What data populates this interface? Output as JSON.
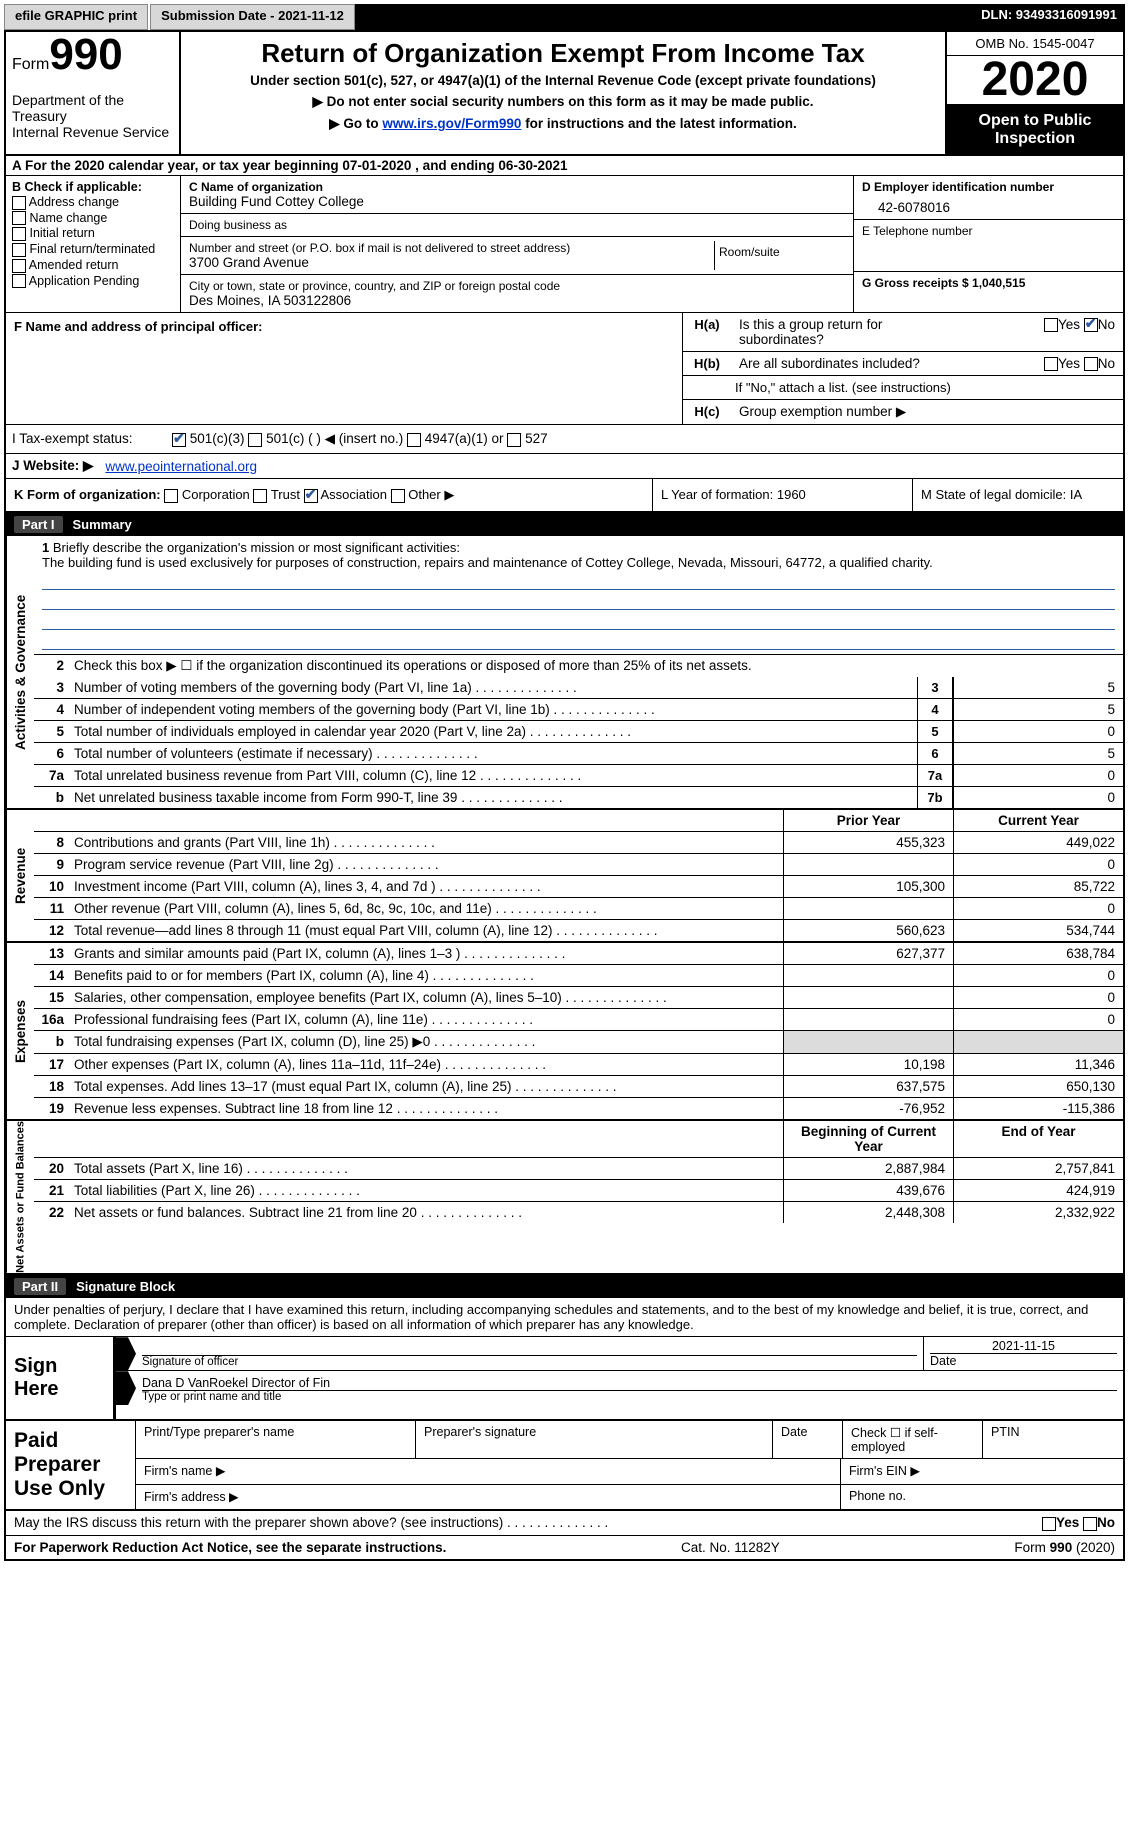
{
  "topbar": {
    "efile": "efile GRAPHIC print",
    "submission_label": "Submission Date - 2021-11-12",
    "dln_label": "DLN: 93493316091991"
  },
  "header": {
    "form_word": "Form",
    "form_num": "990",
    "dept": "Department of the Treasury\nInternal Revenue Service",
    "title": "Return of Organization Exempt From Income Tax",
    "sub1": "Under section 501(c), 527, or 4947(a)(1) of the Internal Revenue Code (except private foundations)",
    "sub2": "▶ Do not enter social security numbers on this form as it may be made public.",
    "sub3_a": "▶ Go to ",
    "sub3_link": "www.irs.gov/Form990",
    "sub3_b": " for instructions and the latest information.",
    "omb": "OMB No. 1545-0047",
    "year": "2020",
    "open": "Open to Public Inspection"
  },
  "row_a": "A   For the 2020 calendar year, or tax year beginning 07-01-2020    , and ending 06-30-2021",
  "section_b": {
    "header": "B Check if applicable:",
    "opts": [
      "Address change",
      "Name change",
      "Initial return",
      "Final return/terminated",
      "Amended return",
      "Application Pending"
    ]
  },
  "section_c": {
    "name_lbl": "C Name of organization",
    "name_val": "Building Fund Cottey College",
    "dba_lbl": "Doing business as",
    "dba_val": "",
    "street_lbl": "Number and street (or P.O. box if mail is not delivered to street address)",
    "street_val": "3700 Grand Avenue",
    "room_lbl": "Room/suite",
    "city_lbl": "City or town, state or province, country, and ZIP or foreign postal code",
    "city_val": "Des Moines, IA  503122806"
  },
  "right_col": {
    "d_lbl": "D Employer identification number",
    "d_val": "42-6078016",
    "e_lbl": "E Telephone number",
    "e_val": "",
    "g_lbl": "G Gross receipts $ 1,040,515"
  },
  "section_f": {
    "lbl": "F Name and address of principal officer:",
    "val": ""
  },
  "section_h": {
    "a_lbl": "H(a)",
    "a_txt": "Is this a group return for subordinates?",
    "b_lbl": "H(b)",
    "b_txt": "Are all subordinates included?",
    "b_note": "If \"No,\" attach a list. (see instructions)",
    "c_lbl": "H(c)",
    "c_txt": "Group exemption number ▶",
    "yes": "Yes",
    "no": "No"
  },
  "row_i": {
    "lbl": "I    Tax-exempt status:",
    "opts": [
      "501(c)(3)",
      "501(c) (  ) ◀ (insert no.)",
      "4947(a)(1) or",
      "527"
    ]
  },
  "row_j": {
    "lbl": "J    Website: ▶",
    "val": "www.peointernational.org"
  },
  "row_k": {
    "lbl": "K Form of organization:",
    "opts": [
      "Corporation",
      "Trust",
      "Association",
      "Other ▶"
    ]
  },
  "row_l": {
    "yr": "L Year of formation: 1960",
    "st": "M State of legal domicile: IA"
  },
  "part1": {
    "hdr_num": "Part I",
    "hdr_txt": "Summary",
    "q1_lbl": "1",
    "q1_txt": "Briefly describe the organization's mission or most significant activities:",
    "q1_val": "The building fund is used exclusively for purposes of construction, repairs and maintenance of Cottey College, Nevada, Missouri, 64772, a qualified charity.",
    "q2_lbl": "2",
    "q2_txt": "Check this box ▶ ☐  if the organization discontinued its operations or disposed of more than 25% of its net assets.",
    "gov_rows": [
      {
        "n": "3",
        "t": "Number of voting members of the governing body (Part VI, line 1a)",
        "b": "3",
        "v": "5"
      },
      {
        "n": "4",
        "t": "Number of independent voting members of the governing body (Part VI, line 1b)",
        "b": "4",
        "v": "5"
      },
      {
        "n": "5",
        "t": "Total number of individuals employed in calendar year 2020 (Part V, line 2a)",
        "b": "5",
        "v": "0"
      },
      {
        "n": "6",
        "t": "Total number of volunteers (estimate if necessary)",
        "b": "6",
        "v": "5"
      },
      {
        "n": "7a",
        "t": "Total unrelated business revenue from Part VIII, column (C), line 12",
        "b": "7a",
        "v": "0"
      },
      {
        "n": "b",
        "t": "Net unrelated business taxable income from Form 990-T, line 39",
        "b": "7b",
        "v": "0"
      }
    ],
    "col_prior": "Prior Year",
    "col_curr": "Current Year",
    "rev_rows": [
      {
        "n": "8",
        "t": "Contributions and grants (Part VIII, line 1h)",
        "p": "455,323",
        "c": "449,022"
      },
      {
        "n": "9",
        "t": "Program service revenue (Part VIII, line 2g)",
        "p": "",
        "c": "0"
      },
      {
        "n": "10",
        "t": "Investment income (Part VIII, column (A), lines 3, 4, and 7d )",
        "p": "105,300",
        "c": "85,722"
      },
      {
        "n": "11",
        "t": "Other revenue (Part VIII, column (A), lines 5, 6d, 8c, 9c, 10c, and 11e)",
        "p": "",
        "c": "0"
      },
      {
        "n": "12",
        "t": "Total revenue—add lines 8 through 11 (must equal Part VIII, column (A), line 12)",
        "p": "560,623",
        "c": "534,744"
      }
    ],
    "exp_rows": [
      {
        "n": "13",
        "t": "Grants and similar amounts paid (Part IX, column (A), lines 1–3 )",
        "p": "627,377",
        "c": "638,784"
      },
      {
        "n": "14",
        "t": "Benefits paid to or for members (Part IX, column (A), line 4)",
        "p": "",
        "c": "0"
      },
      {
        "n": "15",
        "t": "Salaries, other compensation, employee benefits (Part IX, column (A), lines 5–10)",
        "p": "",
        "c": "0"
      },
      {
        "n": "16a",
        "t": "Professional fundraising fees (Part IX, column (A), line 11e)",
        "p": "",
        "c": "0"
      },
      {
        "n": "b",
        "t": "Total fundraising expenses (Part IX, column (D), line 25) ▶0",
        "p": "shade",
        "c": "shade"
      },
      {
        "n": "17",
        "t": "Other expenses (Part IX, column (A), lines 11a–11d, 11f–24e)",
        "p": "10,198",
        "c": "11,346"
      },
      {
        "n": "18",
        "t": "Total expenses. Add lines 13–17 (must equal Part IX, column (A), line 25)",
        "p": "637,575",
        "c": "650,130"
      },
      {
        "n": "19",
        "t": "Revenue less expenses. Subtract line 18 from line 12",
        "p": "-76,952",
        "c": "-115,386"
      }
    ],
    "col_begin": "Beginning of Current Year",
    "col_end": "End of Year",
    "na_rows": [
      {
        "n": "20",
        "t": "Total assets (Part X, line 16)",
        "p": "2,887,984",
        "c": "2,757,841"
      },
      {
        "n": "21",
        "t": "Total liabilities (Part X, line 26)",
        "p": "439,676",
        "c": "424,919"
      },
      {
        "n": "22",
        "t": "Net assets or fund balances. Subtract line 21 from line 20",
        "p": "2,448,308",
        "c": "2,332,922"
      }
    ],
    "vert_gov": "Activities & Governance",
    "vert_rev": "Revenue",
    "vert_exp": "Expenses",
    "vert_na": "Net Assets or Fund Balances"
  },
  "part2": {
    "hdr_num": "Part II",
    "hdr_txt": "Signature Block",
    "note": "Under penalties of perjury, I declare that I have examined this return, including accompanying schedules and statements, and to the best of my knowledge and belief, it is true, correct, and complete. Declaration of preparer (other than officer) is based on all information of which preparer has any knowledge.",
    "sign_here": "Sign Here",
    "sig_officer": "Signature of officer",
    "sig_date": "2021-11-15",
    "date_lbl": "Date",
    "name_val": "Dana D VanRoekel  Director of Fin",
    "name_lbl": "Type or print name and title",
    "prep_title": "Paid Preparer Use Only",
    "prep_cols": [
      "Print/Type preparer's name",
      "Preparer's signature",
      "Date"
    ],
    "prep_check": "Check ☐ if self-employed",
    "ptin": "PTIN",
    "firm_name": "Firm's name   ▶",
    "firm_ein": "Firm's EIN ▶",
    "firm_addr": "Firm's address ▶",
    "phone": "Phone no."
  },
  "footer": {
    "q": "May the IRS discuss this return with the preparer shown above? (see instructions)",
    "yes": "Yes",
    "no": "No",
    "l": "For Paperwork Reduction Act Notice, see the separate instructions.",
    "c": "Cat. No. 11282Y",
    "r": "Form 990 (2020)"
  }
}
